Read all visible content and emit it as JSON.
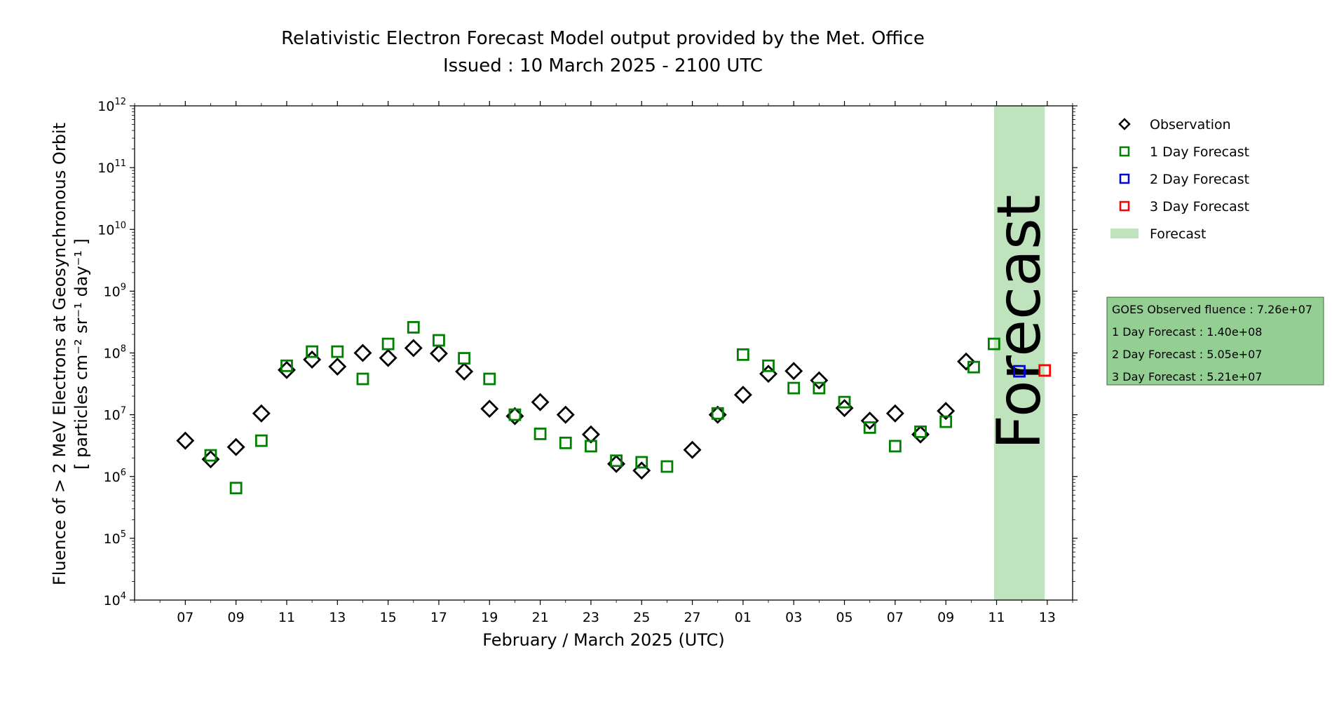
{
  "chart_data": {
    "type": "scatter",
    "title": "Relativistic Electron Forecast Model output provided by the Met. Office",
    "subtitle": "Issued : 10 March 2025 - 2100 UTC",
    "xlabel": "February / March 2025 (UTC)",
    "ylabel_line1": "Fluence of > 2 MeV Electrons at Geosynchronous Orbit",
    "ylabel_line2": "[ particles cm⁻² sr⁻¹ day⁻¹ ]",
    "yscale": "log",
    "ylim": [
      10000,
      1000000000000
    ],
    "xlim": [
      "2025-02-05",
      "2025-03-14"
    ],
    "x_ticks": [
      "07",
      "09",
      "11",
      "13",
      "15",
      "17",
      "19",
      "21",
      "23",
      "25",
      "27",
      "01",
      "03",
      "05",
      "07",
      "09",
      "11",
      "13"
    ],
    "y_ticks": [
      {
        "base": "10",
        "exp": "4"
      },
      {
        "base": "10",
        "exp": "5"
      },
      {
        "base": "10",
        "exp": "6"
      },
      {
        "base": "10",
        "exp": "7"
      },
      {
        "base": "10",
        "exp": "8"
      },
      {
        "base": "10",
        "exp": "9"
      },
      {
        "base": "10",
        "exp": "10"
      },
      {
        "base": "10",
        "exp": "11"
      },
      {
        "base": "10",
        "exp": "12"
      }
    ],
    "forecast_band": {
      "label": "Forecast",
      "x_start": "2025-03-10.9",
      "x_end": "2025-03-12.9",
      "color": "#bfe3bc"
    },
    "series": [
      {
        "name": "Observation",
        "marker": "diamond",
        "color": "#000000",
        "points": [
          {
            "x": "2025-02-07",
            "y": 3800000
          },
          {
            "x": "2025-02-08",
            "y": 1900000
          },
          {
            "x": "2025-02-09",
            "y": 3000000
          },
          {
            "x": "2025-02-10",
            "y": 10500000
          },
          {
            "x": "2025-02-11",
            "y": 53000000
          },
          {
            "x": "2025-02-12",
            "y": 78000000
          },
          {
            "x": "2025-02-13",
            "y": 60000000
          },
          {
            "x": "2025-02-14",
            "y": 100000000
          },
          {
            "x": "2025-02-15",
            "y": 83000000
          },
          {
            "x": "2025-02-16",
            "y": 120000000
          },
          {
            "x": "2025-02-17",
            "y": 98000000
          },
          {
            "x": "2025-02-18",
            "y": 50000000
          },
          {
            "x": "2025-02-19",
            "y": 12500000
          },
          {
            "x": "2025-02-20",
            "y": 9500000
          },
          {
            "x": "2025-02-21",
            "y": 16000000
          },
          {
            "x": "2025-02-22",
            "y": 10000000
          },
          {
            "x": "2025-02-23",
            "y": 4800000
          },
          {
            "x": "2025-02-24",
            "y": 1600000
          },
          {
            "x": "2025-02-25",
            "y": 1250000
          },
          {
            "x": "2025-02-27",
            "y": 2700000
          },
          {
            "x": "2025-02-28",
            "y": 10000000
          },
          {
            "x": "2025-03-01",
            "y": 21000000
          },
          {
            "x": "2025-03-02",
            "y": 46000000
          },
          {
            "x": "2025-03-03",
            "y": 51000000
          },
          {
            "x": "2025-03-04",
            "y": 36000000
          },
          {
            "x": "2025-03-05",
            "y": 12800000
          },
          {
            "x": "2025-03-06",
            "y": 8000000
          },
          {
            "x": "2025-03-07",
            "y": 10500000
          },
          {
            "x": "2025-03-08",
            "y": 4800000
          },
          {
            "x": "2025-03-09",
            "y": 11500000
          },
          {
            "x": "2025-03-09.8",
            "y": 72600000
          }
        ]
      },
      {
        "name": "1 Day Forecast",
        "marker": "square",
        "color": "#008000",
        "points": [
          {
            "x": "2025-02-08",
            "y": 2200000
          },
          {
            "x": "2025-02-09",
            "y": 650000
          },
          {
            "x": "2025-02-10",
            "y": 3800000
          },
          {
            "x": "2025-02-11",
            "y": 62000000
          },
          {
            "x": "2025-02-12",
            "y": 105000000
          },
          {
            "x": "2025-02-13",
            "y": 105000000
          },
          {
            "x": "2025-02-14",
            "y": 38000000
          },
          {
            "x": "2025-02-15",
            "y": 140000000
          },
          {
            "x": "2025-02-16",
            "y": 260000000
          },
          {
            "x": "2025-02-17",
            "y": 160000000
          },
          {
            "x": "2025-02-18",
            "y": 82000000
          },
          {
            "x": "2025-02-19",
            "y": 38000000
          },
          {
            "x": "2025-02-20",
            "y": 10000000
          },
          {
            "x": "2025-02-21",
            "y": 4900000
          },
          {
            "x": "2025-02-22",
            "y": 3500000
          },
          {
            "x": "2025-02-23",
            "y": 3100000
          },
          {
            "x": "2025-02-24",
            "y": 1800000
          },
          {
            "x": "2025-02-25",
            "y": 1700000
          },
          {
            "x": "2025-02-26",
            "y": 1450000
          },
          {
            "x": "2025-02-28",
            "y": 10500000
          },
          {
            "x": "2025-03-01",
            "y": 94000000
          },
          {
            "x": "2025-03-02",
            "y": 62000000
          },
          {
            "x": "2025-03-03",
            "y": 27000000
          },
          {
            "x": "2025-03-04",
            "y": 27000000
          },
          {
            "x": "2025-03-05",
            "y": 16000000
          },
          {
            "x": "2025-03-06",
            "y": 6200000
          },
          {
            "x": "2025-03-07",
            "y": 3100000
          },
          {
            "x": "2025-03-08",
            "y": 5300000
          },
          {
            "x": "2025-03-09",
            "y": 7700000
          },
          {
            "x": "2025-03-10.1",
            "y": 59000000
          },
          {
            "x": "2025-03-10.9",
            "y": 140000000
          }
        ]
      },
      {
        "name": "2 Day Forecast",
        "marker": "square",
        "color": "#0000dd",
        "points": [
          {
            "x": "2025-03-11.9",
            "y": 50500000
          }
        ]
      },
      {
        "name": "3 Day Forecast",
        "marker": "square",
        "color": "#ff0000",
        "points": [
          {
            "x": "2025-03-12.9",
            "y": 52100000
          }
        ]
      }
    ],
    "legend": {
      "placement": "right, outside plot",
      "entries": [
        {
          "label": "Observation",
          "marker": "diamond",
          "color": "#000000"
        },
        {
          "label": "1 Day Forecast",
          "marker": "square",
          "color": "#008000"
        },
        {
          "label": "2 Day Forecast",
          "marker": "square",
          "color": "#0000dd"
        },
        {
          "label": "3 Day Forecast",
          "marker": "square",
          "color": "#ff0000"
        },
        {
          "label": "Forecast",
          "marker": "patch",
          "color": "#bfe3bc"
        }
      ]
    },
    "info_box": {
      "background": "#93cf93",
      "lines": [
        "GOES Observed fluence : 7.26e+07",
        "1 Day Forecast : 1.40e+08",
        "2 Day Forecast : 5.05e+07",
        "3 Day Forecast : 5.21e+07"
      ]
    }
  }
}
